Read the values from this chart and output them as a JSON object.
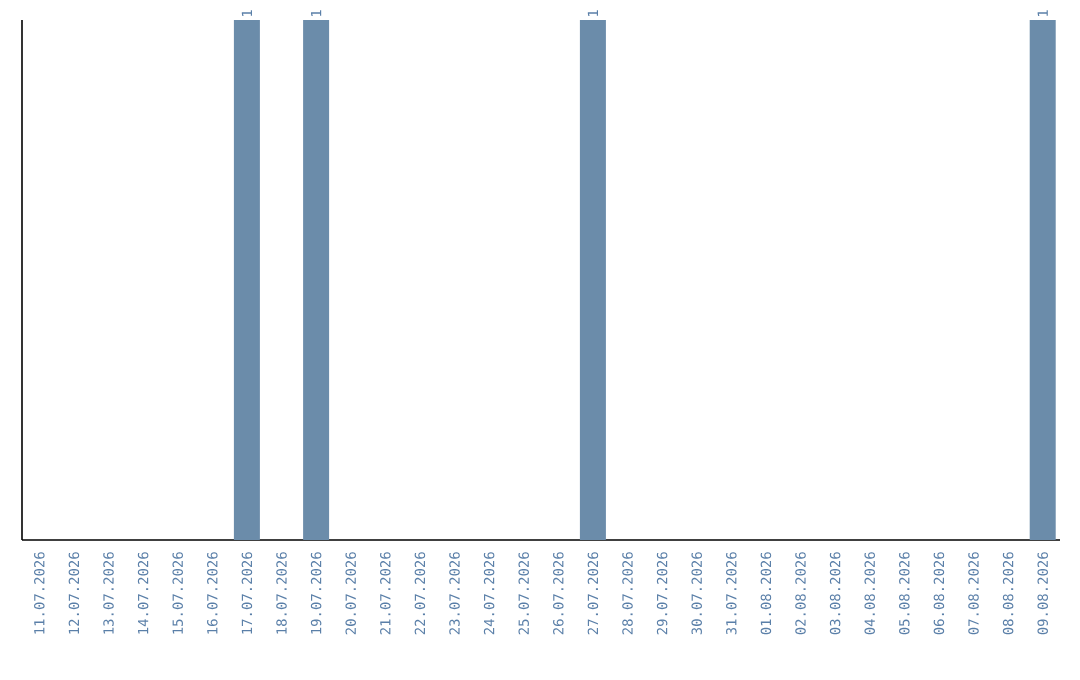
{
  "chart_data": {
    "type": "bar",
    "categories": [
      "11.07.2026",
      "12.07.2026",
      "13.07.2026",
      "14.07.2026",
      "15.07.2026",
      "16.07.2026",
      "17.07.2026",
      "18.07.2026",
      "19.07.2026",
      "20.07.2026",
      "21.07.2026",
      "22.07.2026",
      "23.07.2026",
      "24.07.2026",
      "25.07.2026",
      "26.07.2026",
      "27.07.2026",
      "28.07.2026",
      "29.07.2026",
      "30.07.2026",
      "31.07.2026",
      "01.08.2026",
      "02.08.2026",
      "03.08.2026",
      "04.08.2026",
      "05.08.2026",
      "06.08.2026",
      "07.08.2026",
      "08.08.2026",
      "09.08.2026"
    ],
    "values": [
      0,
      0,
      0,
      0,
      0,
      0,
      1,
      0,
      1,
      0,
      0,
      0,
      0,
      0,
      0,
      0,
      1,
      0,
      0,
      0,
      0,
      0,
      0,
      0,
      0,
      0,
      0,
      0,
      0,
      1
    ],
    "value_labels": [
      null,
      null,
      null,
      null,
      null,
      null,
      "1",
      null,
      "1",
      null,
      null,
      null,
      null,
      null,
      null,
      null,
      "1",
      null,
      null,
      null,
      null,
      null,
      null,
      null,
      null,
      null,
      null,
      null,
      null,
      "1"
    ],
    "color": "#6b8caa"
  }
}
